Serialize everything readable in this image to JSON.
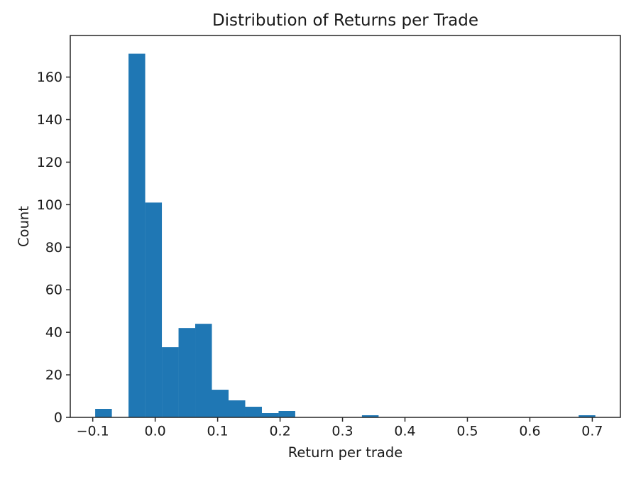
{
  "chart_data": {
    "type": "bar",
    "subtype": "histogram",
    "title": "Distribution of Returns per Trade",
    "xlabel": "Return per trade",
    "ylabel": "Count",
    "bar_color": "#1f77b4",
    "axis_color": "#262626",
    "background_color": "#ffffff",
    "grid": false,
    "legend": null,
    "xlim": [
      -0.136,
      0.745
    ],
    "ylim": [
      0,
      179.55
    ],
    "bins": {
      "start": -0.0961,
      "width": 0.0267,
      "counts": [
        4,
        0,
        171,
        101,
        33,
        42,
        44,
        13,
        8,
        5,
        2,
        3,
        0,
        0,
        0,
        0,
        1,
        0,
        0,
        0,
        0,
        0,
        0,
        0,
        0,
        0,
        0,
        0,
        0,
        1
      ]
    },
    "x_ticks": [
      {
        "value": -0.1,
        "label": "−0.1"
      },
      {
        "value": 0.0,
        "label": "0.0"
      },
      {
        "value": 0.1,
        "label": "0.1"
      },
      {
        "value": 0.2,
        "label": "0.2"
      },
      {
        "value": 0.3,
        "label": "0.3"
      },
      {
        "value": 0.4,
        "label": "0.4"
      },
      {
        "value": 0.5,
        "label": "0.5"
      },
      {
        "value": 0.6,
        "label": "0.6"
      },
      {
        "value": 0.7,
        "label": "0.7"
      }
    ],
    "y_ticks": [
      {
        "value": 0,
        "label": "0"
      },
      {
        "value": 20,
        "label": "20"
      },
      {
        "value": 40,
        "label": "40"
      },
      {
        "value": 60,
        "label": "60"
      },
      {
        "value": 80,
        "label": "80"
      },
      {
        "value": 100,
        "label": "100"
      },
      {
        "value": 120,
        "label": "120"
      },
      {
        "value": 140,
        "label": "140"
      },
      {
        "value": 160,
        "label": "160"
      }
    ]
  }
}
